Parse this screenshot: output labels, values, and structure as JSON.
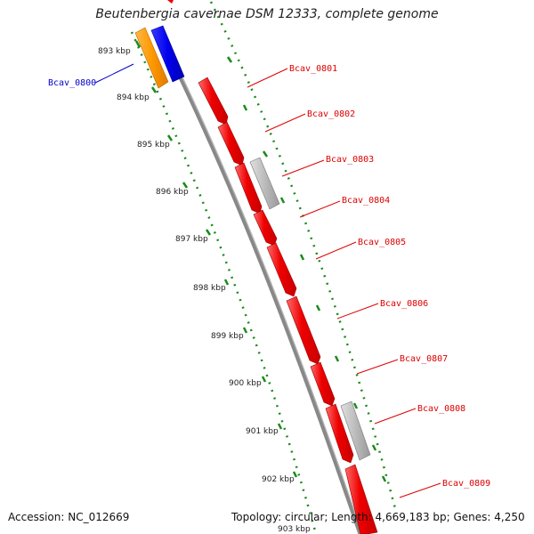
{
  "title": "Beutenbergia cavernae DSM 12333, complete genome",
  "footer": {
    "accession": "Accession: NC_012669",
    "topology": "Topology: circular; Length: 4,669,183 bp; Genes: 4,250"
  },
  "colors": {
    "forward_gene": "#ee0000",
    "forward_gene_light": "#ff5a5a",
    "rnd_gene": "#bbbbbb",
    "reverse_blue": "#0000ee",
    "reverse_orange": "#ff9900",
    "backbone": "#888888",
    "ruler": "#1a8a1a",
    "label_red": "#dd0000",
    "label_blue": "#0000cc"
  },
  "ruler": {
    "tick_labels": [
      "893 kbp",
      "894 kbp",
      "895 kbp",
      "896 kbp",
      "897 kbp",
      "898 kbp",
      "899 kbp",
      "900 kbp",
      "901 kbp",
      "902 kbp",
      "903 kbp"
    ]
  },
  "genes": [
    {
      "label": "Bcav_0800",
      "strand": "reverse",
      "color_key": "reverse_blue",
      "label_side": "left"
    },
    {
      "label": "Bcav_0801",
      "strand": "forward",
      "color_key": "forward_gene",
      "label_side": "right"
    },
    {
      "label": "Bcav_0802",
      "strand": "forward",
      "color_key": "forward_gene",
      "label_side": "right"
    },
    {
      "label": "Bcav_0803",
      "strand": "forward",
      "color_key": "rnd_gene",
      "label_side": "right"
    },
    {
      "label": "Bcav_0804",
      "strand": "forward",
      "color_key": "forward_gene",
      "label_side": "right"
    },
    {
      "label": "Bcav_0805",
      "strand": "forward",
      "color_key": "forward_gene",
      "label_side": "right"
    },
    {
      "label": "Bcav_0806",
      "strand": "forward",
      "color_key": "forward_gene",
      "label_side": "right"
    },
    {
      "label": "Bcav_0807",
      "strand": "forward",
      "color_key": "forward_gene",
      "label_side": "right"
    },
    {
      "label": "Bcav_0808",
      "strand": "forward",
      "color_key": "rnd_gene",
      "label_side": "right"
    },
    {
      "label": "Bcav_0809",
      "strand": "forward",
      "color_key": "forward_gene",
      "label_side": "right"
    }
  ]
}
